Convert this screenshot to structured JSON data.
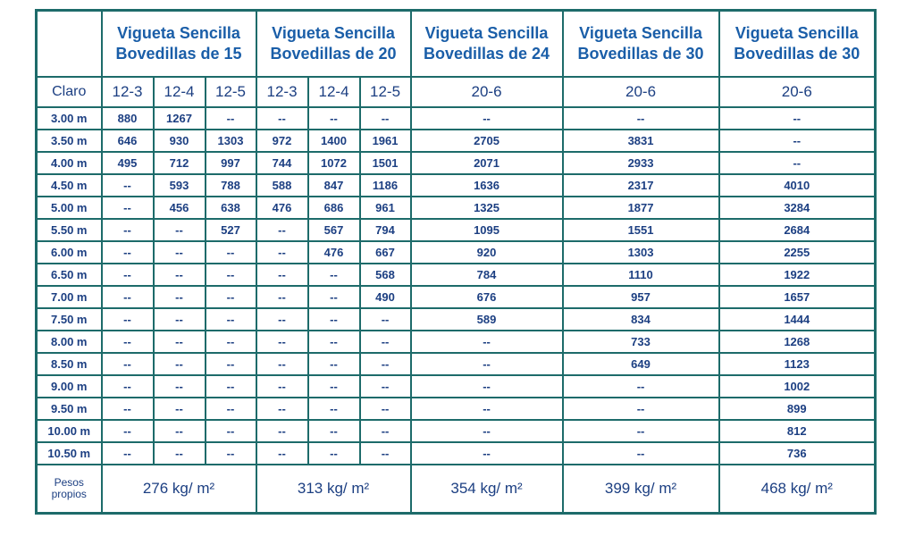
{
  "groups": [
    {
      "line1": "Vigueta Sencilla",
      "line2": "Bovedillas de 15",
      "subs": [
        "12-3",
        "12-4",
        "12-5"
      ],
      "peso": "276 kg/ m²"
    },
    {
      "line1": "Vigueta Sencilla",
      "line2": "Bovedillas de 20",
      "subs": [
        "12-3",
        "12-4",
        "12-5"
      ],
      "peso": "313 kg/ m²"
    },
    {
      "line1": "Vigueta Sencilla",
      "line2": "Bovedillas de 24",
      "subs": [
        "20-6"
      ],
      "peso": "354 kg/ m²"
    },
    {
      "line1": "Vigueta Sencilla",
      "line2": "Bovedillas de 30",
      "subs": [
        "20-6"
      ],
      "peso": "399 kg/ m²"
    },
    {
      "line1": "Vigueta Sencilla",
      "line2": "Bovedillas de 30",
      "subs": [
        "20-6"
      ],
      "peso": "468 kg/ m²"
    }
  ],
  "claro_label": "Claro",
  "pesos_label": {
    "line1": "Pesos",
    "line2": "propios"
  },
  "rows": [
    {
      "claro": "3.00 m",
      "values": [
        "880",
        "1267",
        "--",
        "--",
        "--",
        "--",
        "--",
        "--",
        "--"
      ]
    },
    {
      "claro": "3.50 m",
      "values": [
        "646",
        "930",
        "1303",
        "972",
        "1400",
        "1961",
        "2705",
        "3831",
        "--"
      ]
    },
    {
      "claro": "4.00 m",
      "values": [
        "495",
        "712",
        "997",
        "744",
        "1072",
        "1501",
        "2071",
        "2933",
        "--"
      ]
    },
    {
      "claro": "4.50 m",
      "values": [
        "--",
        "593",
        "788",
        "588",
        "847",
        "1186",
        "1636",
        "2317",
        "4010"
      ]
    },
    {
      "claro": "5.00 m",
      "values": [
        "--",
        "456",
        "638",
        "476",
        "686",
        "961",
        "1325",
        "1877",
        "3284"
      ]
    },
    {
      "claro": "5.50 m",
      "values": [
        "--",
        "--",
        "527",
        "--",
        "567",
        "794",
        "1095",
        "1551",
        "2684"
      ]
    },
    {
      "claro": "6.00 m",
      "values": [
        "--",
        "--",
        "--",
        "--",
        "476",
        "667",
        "920",
        "1303",
        "2255"
      ]
    },
    {
      "claro": "6.50 m",
      "values": [
        "--",
        "--",
        "--",
        "--",
        "--",
        "568",
        "784",
        "1110",
        "1922"
      ]
    },
    {
      "claro": "7.00 m",
      "values": [
        "--",
        "--",
        "--",
        "--",
        "--",
        "490",
        "676",
        "957",
        "1657"
      ]
    },
    {
      "claro": "7.50 m",
      "values": [
        "--",
        "--",
        "--",
        "--",
        "--",
        "--",
        "589",
        "834",
        "1444"
      ]
    },
    {
      "claro": "8.00 m",
      "values": [
        "--",
        "--",
        "--",
        "--",
        "--",
        "--",
        "--",
        "733",
        "1268"
      ]
    },
    {
      "claro": "8.50 m",
      "values": [
        "--",
        "--",
        "--",
        "--",
        "--",
        "--",
        "--",
        "649",
        "1123"
      ]
    },
    {
      "claro": "9.00 m",
      "values": [
        "--",
        "--",
        "--",
        "--",
        "--",
        "--",
        "--",
        "--",
        "1002"
      ]
    },
    {
      "claro": "9.50 m",
      "values": [
        "--",
        "--",
        "--",
        "--",
        "--",
        "--",
        "--",
        "--",
        "899"
      ]
    },
    {
      "claro": "10.00 m",
      "values": [
        "--",
        "--",
        "--",
        "--",
        "--",
        "--",
        "--",
        "--",
        "812"
      ]
    },
    {
      "claro": "10.50 m",
      "values": [
        "--",
        "--",
        "--",
        "--",
        "--",
        "--",
        "--",
        "--",
        "736"
      ]
    }
  ],
  "colors": {
    "border": "#1d6b6a",
    "header_text": "#1a5ea8",
    "body_text": "#1c3f82"
  }
}
